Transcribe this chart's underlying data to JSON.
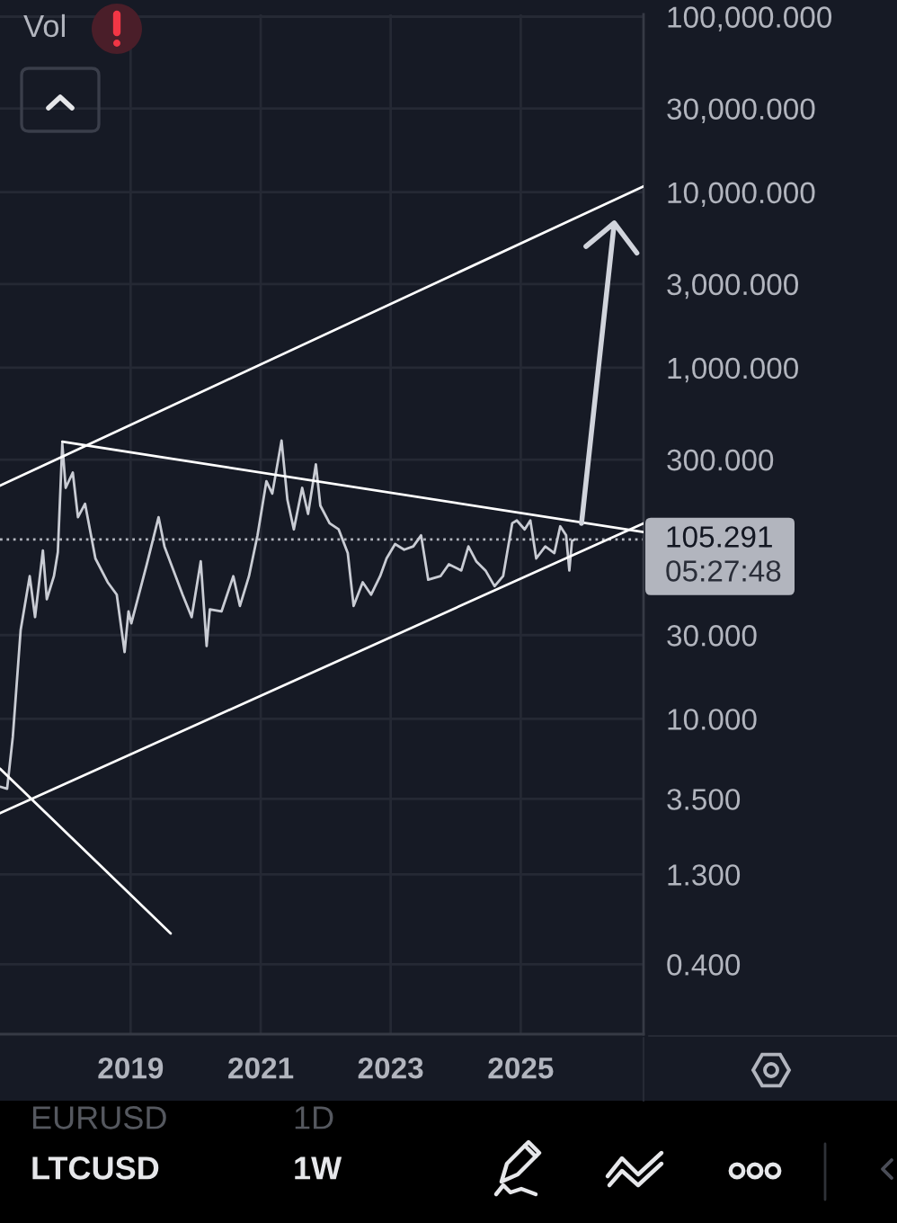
{
  "chart_data": {
    "type": "line",
    "title": "LTCUSD",
    "subtitle": "1W",
    "annotations": [
      "Vol",
      "05:27:48",
      "EURUSD",
      "1D"
    ],
    "xlim": [
      "2016-12-28",
      "2026-11-22"
    ],
    "xticks": [
      "2019",
      "2021",
      "2023",
      "2025"
    ],
    "log": true,
    "ylim": [
      0.16,
      103000
    ],
    "yticks": [
      {
        "value": 100000,
        "label": "100,000.000"
      },
      {
        "value": 30000,
        "label": "30,000.000"
      },
      {
        "value": 10000,
        "label": "10,000.000"
      },
      {
        "value": 3000,
        "label": "3,000.000"
      },
      {
        "value": 1000,
        "label": "1,000.000"
      },
      {
        "value": 300,
        "label": "300.000"
      },
      {
        "value": 30,
        "label": "30.000"
      },
      {
        "value": 10,
        "label": "10.000"
      },
      {
        "value": 3.5,
        "label": "3.500"
      },
      {
        "value": 1.3,
        "label": "1.300"
      },
      {
        "value": 0.4,
        "label": "0.400"
      }
    ],
    "grid": true,
    "ref_lines": [
      {
        "axis": "y",
        "value": 105.291,
        "label": "105.291",
        "color": "#b2b5be",
        "line_style": "dotted"
      }
    ],
    "series": [
      {
        "color": "#c9ccd4",
        "x": [
          "2017-01-01",
          "2017-02-06",
          "2017-03-10",
          "2017-04-23",
          "2017-06-13",
          "2017-07-13",
          "2017-08-26",
          "2017-09-17",
          "2017-10-27",
          "2017-11-18",
          "2017-12-13",
          "2018-01-01",
          "2018-02-10",
          "2018-03-11",
          "2018-04-20",
          "2018-06-17",
          "2018-08-25",
          "2018-10-15",
          "2018-11-28",
          "2018-12-20",
          "2019-01-05",
          "2019-04-02",
          "2019-06-07",
          "2019-07-10",
          "2019-08-30",
          "2019-10-20",
          "2019-12-10",
          "2020-01-30",
          "2020-03-03",
          "2020-03-21",
          "2020-05-26",
          "2020-07-31",
          "2020-09-06",
          "2020-10-27",
          "2020-12-14",
          "2021-02-02",
          "2021-03-07",
          "2021-04-28",
          "2021-05-31",
          "2021-07-06",
          "2021-08-22",
          "2021-09-24",
          "2021-11-07",
          "2021-12-02",
          "2022-01-23",
          "2022-03-15",
          "2022-05-05",
          "2022-06-07",
          "2022-07-28",
          "2022-09-13",
          "2022-11-03",
          "2022-12-09",
          "2023-01-26",
          "2023-03-18",
          "2023-05-08",
          "2023-06-21",
          "2023-07-31",
          "2023-10-08",
          "2023-11-24",
          "2024-02-02",
          "2024-03-13",
          "2024-04-26",
          "2024-06-17",
          "2024-08-07",
          "2024-09-24",
          "2024-11-14",
          "2024-12-10",
          "2025-01-23",
          "2025-02-24",
          "2025-03-29",
          "2025-05-19",
          "2025-07-09",
          "2025-08-11",
          "2025-09-13",
          "2025-10-01",
          "2025-10-16",
          "2025-10-31"
        ],
        "values": [
          4.1,
          4.0,
          7.9,
          32,
          65,
          38,
          91,
          48,
          65,
          89,
          370,
          207,
          253,
          141,
          168,
          82,
          60,
          51,
          24,
          41,
          35,
          76,
          141,
          96,
          70,
          51,
          38,
          79,
          26,
          42,
          41,
          65,
          44,
          65,
          111,
          226,
          192,
          385,
          177,
          120,
          207,
          147,
          282,
          164,
          130,
          120,
          88,
          44,
          60,
          51,
          65,
          82,
          99,
          92,
          96,
          111,
          62,
          65,
          76,
          70,
          96,
          79,
          70,
          57,
          65,
          130,
          135,
          120,
          135,
          82,
          96,
          88,
          125,
          111,
          70,
          103,
          105.291
        ]
      },
      {
        "color": "#ffffff",
        "x": [
          "2016-12-28",
          "2026-11-22"
        ],
        "values": [
          213,
          10800
        ]
      },
      {
        "color": "#ffffff",
        "x": [
          "2016-12-28",
          "2026-11-22"
        ],
        "values": [
          2.9,
          130
        ]
      },
      {
        "color": "#ffffff",
        "x": [
          "2017-12-13",
          "2026-11-22"
        ],
        "values": [
          379,
          116
        ]
      },
      {
        "color": "#ffffff",
        "x": [
          "2016-12-28",
          "2019-08-14"
        ],
        "values": [
          5.2,
          0.6
        ]
      }
    ]
  }
}
